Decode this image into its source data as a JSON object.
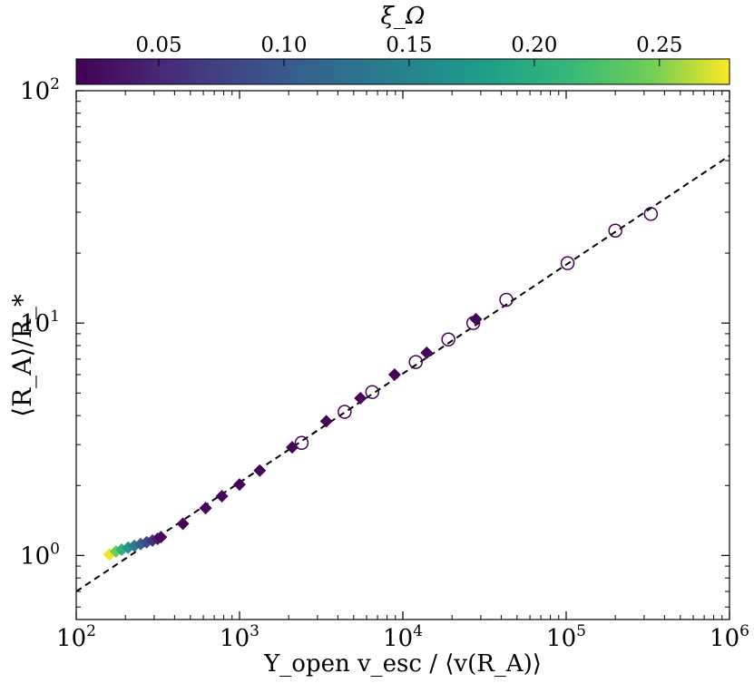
{
  "chart_data": {
    "type": "scatter",
    "title": "",
    "xlabel": "Υ_open v_esc / ⟨v(R_A)⟩",
    "ylabel": "⟨R_A⟩/R_*",
    "xscale": "log",
    "yscale": "log",
    "xlim": [
      100,
      1000000
    ],
    "ylim": [
      0.53,
      100
    ],
    "x_ticks": [
      {
        "base": "10",
        "exp": "2",
        "value": 100
      },
      {
        "base": "10",
        "exp": "3",
        "value": 1000
      },
      {
        "base": "10",
        "exp": "4",
        "value": 10000
      },
      {
        "base": "10",
        "exp": "5",
        "value": 100000
      },
      {
        "base": "10",
        "exp": "6",
        "value": 1000000
      }
    ],
    "y_ticks": [
      {
        "base": "10",
        "exp": "0",
        "value": 1
      },
      {
        "base": "10",
        "exp": "1",
        "value": 10
      },
      {
        "base": "10",
        "exp": "2",
        "value": 100
      }
    ],
    "colorbar": {
      "label": "ξ_Ω",
      "range": [
        0.017,
        0.278
      ],
      "colormap": "viridis",
      "ticks": [
        "0.05",
        "0.10",
        "0.15",
        "0.20",
        "0.25"
      ],
      "tick_values": [
        0.05,
        0.1,
        0.15,
        0.2,
        0.25
      ],
      "orientation": "horizontal",
      "placement": "top"
    },
    "fit_line": {
      "style": "dashed",
      "color": "#000000",
      "points": [
        [
          100,
          0.7
        ],
        [
          1000000,
          52.5
        ]
      ]
    },
    "series": [
      {
        "marker": "diamond",
        "filled": true,
        "color_by": "xi_omega",
        "points": [
          {
            "x": 160,
            "y": 1.01,
            "c": 0.275
          },
          {
            "x": 175,
            "y": 1.04,
            "c": 0.245
          },
          {
            "x": 190,
            "y": 1.06,
            "c": 0.205
          },
          {
            "x": 208,
            "y": 1.08,
            "c": 0.17
          },
          {
            "x": 227,
            "y": 1.1,
            "c": 0.14
          },
          {
            "x": 248,
            "y": 1.12,
            "c": 0.11
          },
          {
            "x": 270,
            "y": 1.14,
            "c": 0.085
          },
          {
            "x": 293,
            "y": 1.16,
            "c": 0.06
          },
          {
            "x": 315,
            "y": 1.18,
            "c": 0.04
          },
          {
            "x": 330,
            "y": 1.2,
            "c": 0.025
          },
          {
            "x": 450,
            "y": 1.37,
            "c": 0.02
          },
          {
            "x": 620,
            "y": 1.6,
            "c": 0.02
          },
          {
            "x": 780,
            "y": 1.8,
            "c": 0.02
          },
          {
            "x": 1000,
            "y": 2.02,
            "c": 0.02
          },
          {
            "x": 1330,
            "y": 2.32,
            "c": 0.02
          },
          {
            "x": 2100,
            "y": 2.92,
            "c": 0.02
          },
          {
            "x": 3400,
            "y": 3.78,
            "c": 0.02
          },
          {
            "x": 5500,
            "y": 4.75,
            "c": 0.02
          },
          {
            "x": 8900,
            "y": 6.0,
            "c": 0.02
          },
          {
            "x": 14000,
            "y": 7.45,
            "c": 0.02
          },
          {
            "x": 28000,
            "y": 10.4,
            "c": 0.02
          }
        ]
      },
      {
        "marker": "circle",
        "filled": false,
        "color": "#440154",
        "points": [
          {
            "x": 2400,
            "y": 3.05
          },
          {
            "x": 4400,
            "y": 4.15
          },
          {
            "x": 6500,
            "y": 5.05
          },
          {
            "x": 12000,
            "y": 6.8
          },
          {
            "x": 19000,
            "y": 8.5
          },
          {
            "x": 27000,
            "y": 10.0
          },
          {
            "x": 43000,
            "y": 12.6
          },
          {
            "x": 102000,
            "y": 18.1
          },
          {
            "x": 200000,
            "y": 25.0
          },
          {
            "x": 330000,
            "y": 29.5
          }
        ]
      }
    ]
  }
}
